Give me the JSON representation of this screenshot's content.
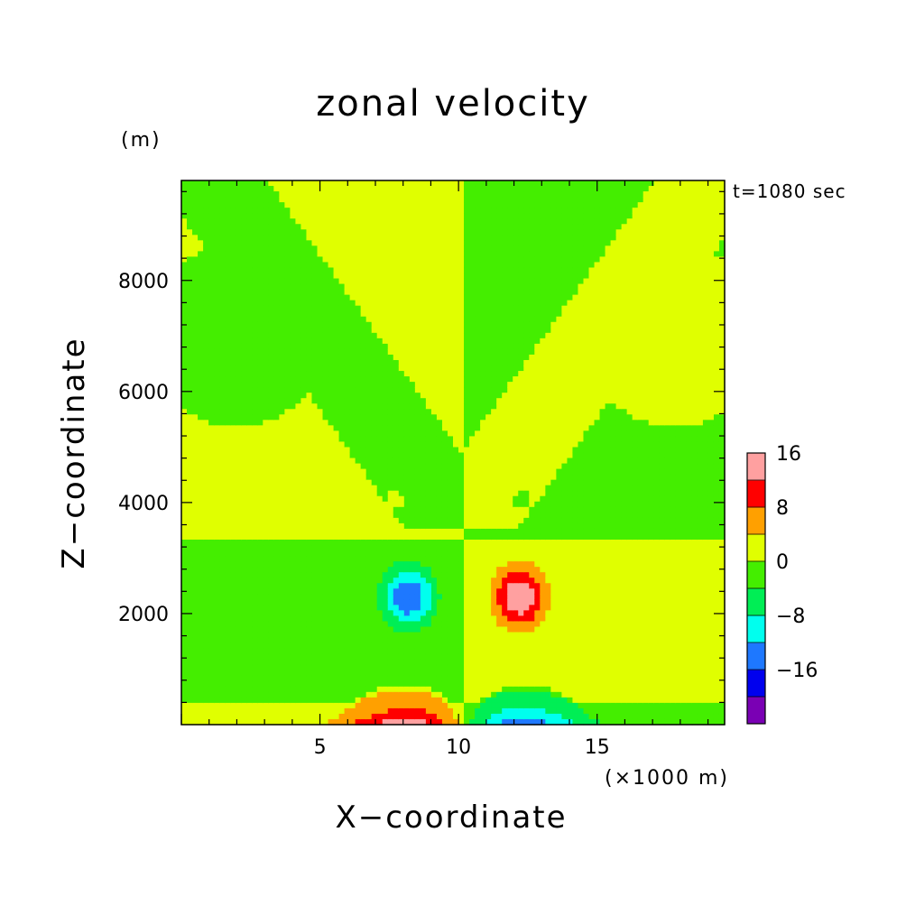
{
  "chart_data": {
    "type": "heatmap",
    "title": "zonal velocity",
    "xlabel": "X−coordinate",
    "ylabel": "Z−coordinate",
    "x_unit": "(×1000 m)",
    "y_unit": "(m)",
    "annotation": "t=1080 sec",
    "xlim": [
      0,
      19.6
    ],
    "ylim": [
      0,
      9800
    ],
    "x_ticks": [
      {
        "value": 5,
        "label": "5"
      },
      {
        "value": 10,
        "label": "10"
      },
      {
        "value": 15,
        "label": "15"
      }
    ],
    "y_ticks": [
      {
        "value": 2000,
        "label": "2000"
      },
      {
        "value": 4000,
        "label": "4000"
      },
      {
        "value": 6000,
        "label": "6000"
      },
      {
        "value": 8000,
        "label": "8000"
      }
    ],
    "levels": [
      -24,
      -20,
      -16,
      -12,
      -8,
      -4,
      0,
      4,
      8,
      12,
      16,
      20
    ],
    "colorbar_ticks": [
      {
        "value": 16,
        "label": "16"
      },
      {
        "value": 8,
        "label": "8"
      },
      {
        "value": 0,
        "label": "0"
      },
      {
        "value": -8,
        "label": "−8"
      },
      {
        "value": -16,
        "label": "−16"
      }
    ],
    "colors": [
      "#7a00b4",
      "#0000ee",
      "#1e78ff",
      "#00ffee",
      "#00ee55",
      "#44ee00",
      "#e0ff00",
      "#ffa000",
      "#ff0000",
      "#ffa0a0"
    ],
    "field_features": [
      {
        "kind": "vortex",
        "x": 12.2,
        "z": 2300,
        "peak": 17,
        "sx": 1.05,
        "sz": 620
      },
      {
        "kind": "vortex",
        "x": 8.2,
        "z": 2300,
        "peak": -17,
        "sx": 1.05,
        "sz": 620
      },
      {
        "kind": "surface_jet",
        "x": 8.2,
        "z": 0,
        "peak": 15,
        "sx": 2.2,
        "sz": 360
      },
      {
        "kind": "surface_jet",
        "x": 12.2,
        "z": 0,
        "peak": -15,
        "sx": 2.2,
        "sz": 360
      },
      {
        "kind": "small_blob",
        "x": 7.7,
        "z": 4050,
        "peak": 4.3,
        "sx": 0.3,
        "sz": 170
      },
      {
        "kind": "small_blob",
        "x": 12.3,
        "z": 4050,
        "peak": -4.3,
        "sx": 0.3,
        "sz": 170
      }
    ],
    "background_lobes": [
      {
        "x": 2.0,
        "z": 7000
      },
      {
        "x": 17.8,
        "z": 7000
      }
    ],
    "background_split_x": 10.1,
    "background_neck_z": 3500
  }
}
